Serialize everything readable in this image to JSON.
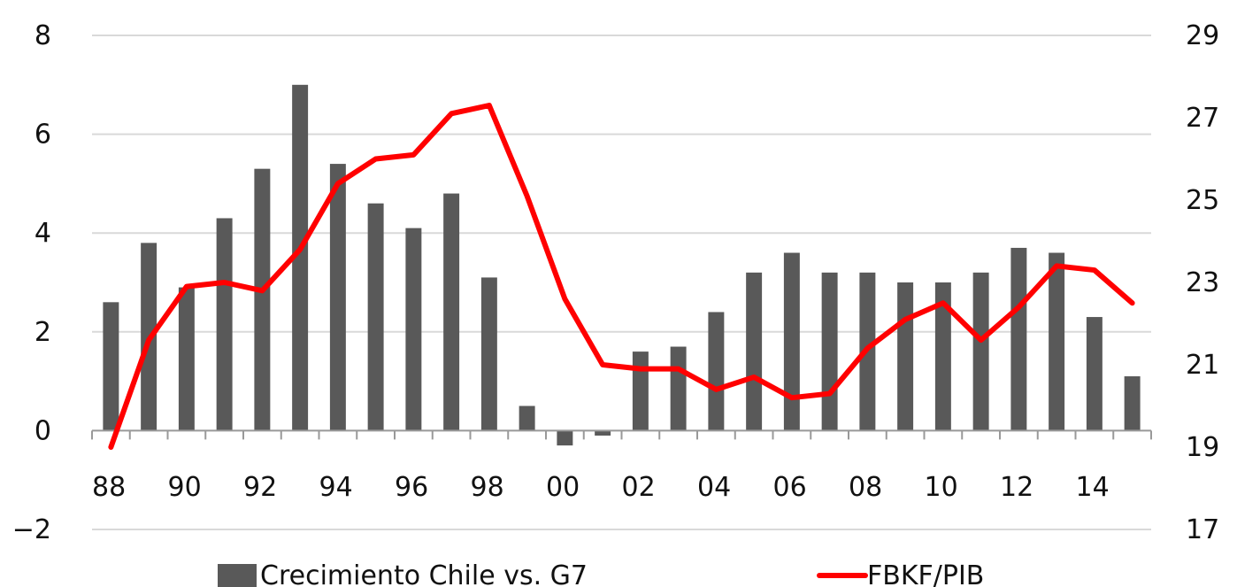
{
  "chart_data": {
    "type": "bar",
    "title": "",
    "xlabel": "",
    "ylabel": "",
    "y2label": "",
    "x": [
      "88",
      "89",
      "90",
      "91",
      "92",
      "93",
      "94",
      "95",
      "96",
      "97",
      "98",
      "99",
      "00",
      "01",
      "02",
      "03",
      "04",
      "05",
      "06",
      "07",
      "08",
      "09",
      "10",
      "11",
      "12",
      "13",
      "14",
      "15"
    ],
    "x_tick_labels": [
      "88",
      "90",
      "92",
      "94",
      "96",
      "98",
      "00",
      "02",
      "04",
      "06",
      "08",
      "10",
      "12",
      "14"
    ],
    "ylim": [
      -2,
      8
    ],
    "y_ticks": [
      -2,
      0,
      2,
      4,
      6,
      8
    ],
    "y_tick_labels": [
      "−2",
      "0",
      "2",
      "4",
      "6",
      "8"
    ],
    "y2lim": [
      17,
      29
    ],
    "y2_ticks": [
      17,
      19,
      21,
      23,
      25,
      27,
      29
    ],
    "y2_tick_labels": [
      "17",
      "19",
      "21",
      "23",
      "25",
      "27",
      "29"
    ],
    "grid": true,
    "legend_position": "bottom",
    "series": [
      {
        "name": "Crecimiento Chile vs. G7",
        "type": "bar",
        "axis": "left",
        "color": "#595959",
        "values": [
          2.6,
          3.8,
          2.9,
          4.3,
          5.3,
          7.0,
          5.4,
          4.6,
          4.1,
          4.8,
          3.1,
          0.5,
          -0.3,
          -0.1,
          1.6,
          1.7,
          2.4,
          3.2,
          3.6,
          3.2,
          3.2,
          3.0,
          3.0,
          3.2,
          3.7,
          3.6,
          2.3,
          1.1
        ]
      },
      {
        "name": "FBKF/PIB",
        "type": "line",
        "axis": "right",
        "color": "#ff0000",
        "values": [
          19.0,
          21.6,
          22.9,
          23.0,
          22.8,
          23.8,
          25.4,
          26.0,
          26.1,
          27.1,
          27.3,
          25.1,
          22.6,
          21.0,
          20.9,
          20.9,
          20.4,
          20.7,
          20.2,
          20.3,
          21.4,
          22.1,
          22.5,
          21.6,
          22.4,
          23.4,
          23.3,
          22.5
        ]
      }
    ]
  }
}
